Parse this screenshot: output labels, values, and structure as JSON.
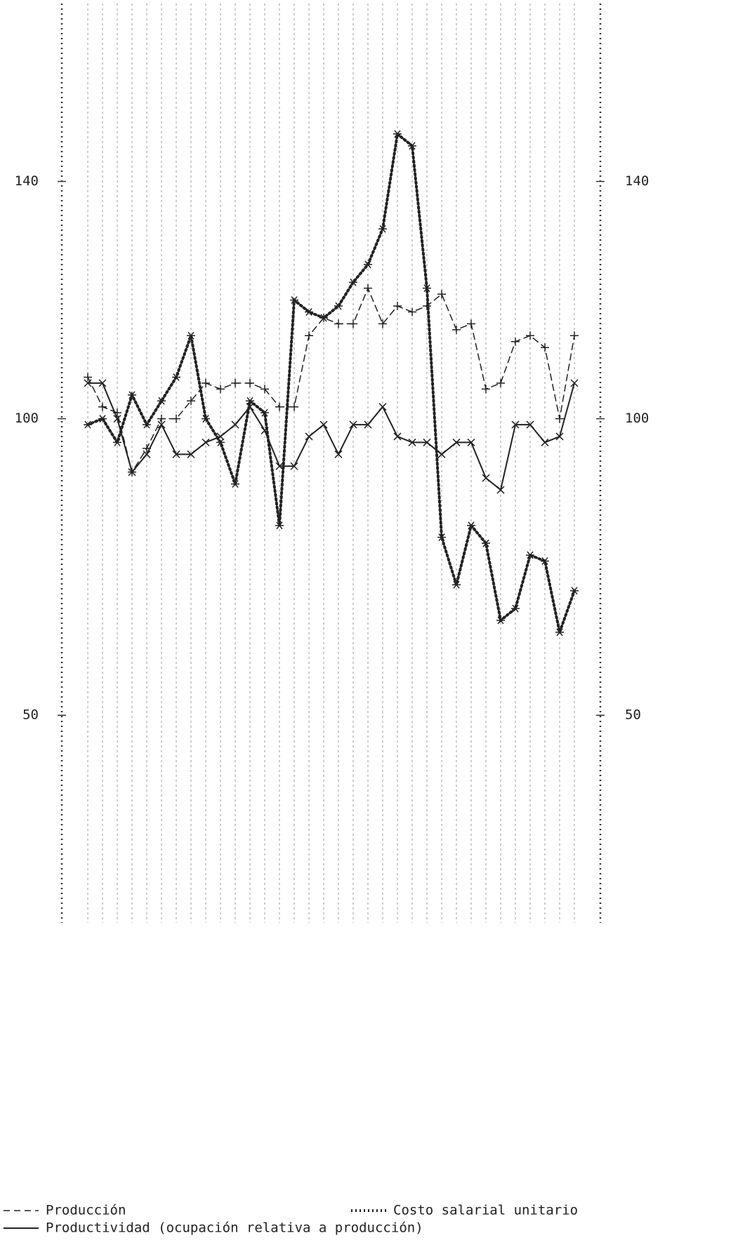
{
  "chart_data": {
    "type": "line",
    "categories": [
      null,
      null,
      null,
      null,
      null,
      null,
      null,
      null,
      null,
      null,
      null,
      null,
      null,
      null,
      null,
      null,
      null,
      null,
      null,
      null,
      null,
      null,
      null,
      null,
      null,
      null,
      null,
      null,
      null,
      null,
      null,
      null,
      null,
      null
    ],
    "series": [
      {
        "name": "Producción",
        "color": "#222",
        "style": "dashed",
        "marker": "+",
        "values": [
          107,
          102,
          101,
          91,
          95,
          100,
          100,
          103,
          106,
          105,
          106,
          106,
          105,
          102,
          102,
          114,
          117,
          116,
          116,
          122,
          116,
          119,
          118,
          119,
          121,
          115,
          116,
          105,
          106,
          113,
          114,
          112,
          100,
          114
        ]
      },
      {
        "name": "Costo salarial unitario",
        "color": "#222",
        "style": "dotted",
        "marker": "*",
        "values": [
          99,
          100,
          96,
          104,
          99,
          103,
          107,
          114,
          100,
          96,
          89,
          103,
          101,
          82,
          120,
          118,
          117,
          119,
          123,
          126,
          132,
          148,
          146,
          122,
          80,
          72,
          82,
          79,
          66,
          68,
          77,
          76,
          64,
          71
        ]
      },
      {
        "name": "Productividad (ocupación relativa a producción)",
        "color": "#222",
        "style": "solid",
        "marker": "x",
        "values": [
          106,
          106,
          100,
          91,
          94,
          99,
          94,
          94,
          96,
          97,
          99,
          102,
          98,
          92,
          92,
          97,
          99,
          94,
          99,
          99,
          102,
          97,
          96,
          96,
          94,
          96,
          96,
          90,
          88,
          99,
          99,
          96,
          97,
          106
        ]
      }
    ],
    "ylim": [
      15,
      170
    ],
    "yticks": [
      50,
      100,
      140
    ],
    "grid": true
  }
}
